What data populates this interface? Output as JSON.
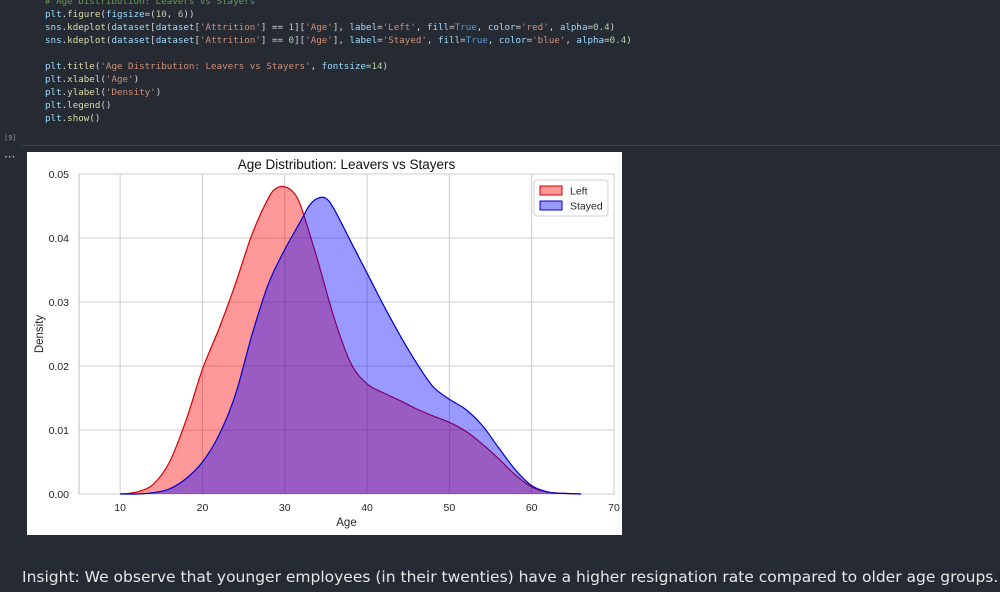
{
  "notebook": {
    "code_lines": [
      [
        [
          "tk-c",
          "# Age Distribution: Leavers vs Stayers"
        ]
      ],
      [
        [
          "tk-v",
          "plt"
        ],
        [
          "tk-p",
          "."
        ],
        [
          "tk-f",
          "figure"
        ],
        [
          "tk-p",
          "("
        ],
        [
          "tk-v",
          "figsize"
        ],
        [
          "tk-p",
          "=("
        ],
        [
          "tk-n",
          "10"
        ],
        [
          "tk-p",
          ", "
        ],
        [
          "tk-n",
          "6"
        ],
        [
          "tk-p",
          "))"
        ]
      ],
      [
        [
          "tk-v",
          "sns"
        ],
        [
          "tk-p",
          "."
        ],
        [
          "tk-f",
          "kdeplot"
        ],
        [
          "tk-p",
          "("
        ],
        [
          "tk-v",
          "dataset"
        ],
        [
          "tk-p",
          "["
        ],
        [
          "tk-v",
          "dataset"
        ],
        [
          "tk-p",
          "["
        ],
        [
          "tk-s",
          "'Attrition'"
        ],
        [
          "tk-p",
          "] == "
        ],
        [
          "tk-n",
          "1"
        ],
        [
          "tk-p",
          "]["
        ],
        [
          "tk-s",
          "'Age'"
        ],
        [
          "tk-p",
          "], "
        ],
        [
          "tk-v",
          "label"
        ],
        [
          "tk-p",
          "="
        ],
        [
          "tk-s",
          "'Left'"
        ],
        [
          "tk-p",
          ", "
        ],
        [
          "tk-v",
          "fill"
        ],
        [
          "tk-p",
          "="
        ],
        [
          "tk-k",
          "True"
        ],
        [
          "tk-p",
          ", "
        ],
        [
          "tk-v",
          "color"
        ],
        [
          "tk-p",
          "="
        ],
        [
          "tk-s",
          "'red'"
        ],
        [
          "tk-p",
          ", "
        ],
        [
          "tk-v",
          "alpha"
        ],
        [
          "tk-p",
          "="
        ],
        [
          "tk-n",
          "0.4"
        ],
        [
          "tk-p",
          ")"
        ]
      ],
      [
        [
          "tk-v",
          "sns"
        ],
        [
          "tk-p",
          "."
        ],
        [
          "tk-f",
          "kdeplot"
        ],
        [
          "tk-p",
          "("
        ],
        [
          "tk-v",
          "dataset"
        ],
        [
          "tk-p",
          "["
        ],
        [
          "tk-v",
          "dataset"
        ],
        [
          "tk-p",
          "["
        ],
        [
          "tk-s",
          "'Attrition'"
        ],
        [
          "tk-p",
          "] == "
        ],
        [
          "tk-n",
          "0"
        ],
        [
          "tk-p",
          "]["
        ],
        [
          "tk-s",
          "'Age'"
        ],
        [
          "tk-p",
          "], "
        ],
        [
          "tk-v",
          "label"
        ],
        [
          "tk-p",
          "="
        ],
        [
          "tk-s",
          "'Stayed'"
        ],
        [
          "tk-p",
          ", "
        ],
        [
          "tk-v",
          "fill"
        ],
        [
          "tk-p",
          "="
        ],
        [
          "tk-k",
          "True"
        ],
        [
          "tk-p",
          ", "
        ],
        [
          "tk-v",
          "color"
        ],
        [
          "tk-p",
          "="
        ],
        [
          "tk-s",
          "'blue'"
        ],
        [
          "tk-p",
          ", "
        ],
        [
          "tk-v",
          "alpha"
        ],
        [
          "tk-p",
          "="
        ],
        [
          "tk-n",
          "0.4"
        ],
        [
          "tk-p",
          ")"
        ]
      ],
      [],
      [
        [
          "tk-v",
          "plt"
        ],
        [
          "tk-p",
          "."
        ],
        [
          "tk-f",
          "title"
        ],
        [
          "tk-p",
          "("
        ],
        [
          "tk-s",
          "'Age Distribution: Leavers vs Stayers'"
        ],
        [
          "tk-p",
          ", "
        ],
        [
          "tk-v",
          "fontsize"
        ],
        [
          "tk-p",
          "="
        ],
        [
          "tk-n",
          "14"
        ],
        [
          "tk-p",
          ")"
        ]
      ],
      [
        [
          "tk-v",
          "plt"
        ],
        [
          "tk-p",
          "."
        ],
        [
          "tk-f",
          "xlabel"
        ],
        [
          "tk-p",
          "("
        ],
        [
          "tk-s",
          "'Age'"
        ],
        [
          "tk-p",
          ")"
        ]
      ],
      [
        [
          "tk-v",
          "plt"
        ],
        [
          "tk-p",
          "."
        ],
        [
          "tk-f",
          "ylabel"
        ],
        [
          "tk-p",
          "("
        ],
        [
          "tk-s",
          "'Density'"
        ],
        [
          "tk-p",
          ")"
        ]
      ],
      [
        [
          "tk-v",
          "plt"
        ],
        [
          "tk-p",
          "."
        ],
        [
          "tk-f",
          "legend"
        ],
        [
          "tk-p",
          "()"
        ]
      ],
      [
        [
          "tk-v",
          "plt"
        ],
        [
          "tk-p",
          "."
        ],
        [
          "tk-f",
          "show"
        ],
        [
          "tk-p",
          "()"
        ]
      ]
    ],
    "execution_count": "[9]",
    "more_icon": "···",
    "insight": "Insight: We observe that younger employees (in their twenties) have a higher resignation rate compared to older age groups."
  },
  "chart_data": {
    "type": "area",
    "title": "Age Distribution: Leavers vs Stayers",
    "xlabel": "Age",
    "ylabel": "Density",
    "xlim": [
      5,
      70
    ],
    "ylim": [
      0,
      0.05
    ],
    "xticks": [
      "10",
      "20",
      "30",
      "40",
      "50",
      "60",
      "70"
    ],
    "yticks": [
      "0.00",
      "0.01",
      "0.02",
      "0.03",
      "0.04",
      "0.05"
    ],
    "grid": true,
    "legend_position": "top-right",
    "series": [
      {
        "name": "Left",
        "fill": "#ff0000",
        "line": "#d40000",
        "x": [
          10,
          12,
          14,
          16,
          18,
          20,
          22,
          24,
          26,
          28,
          29,
          30,
          31,
          32,
          34,
          36,
          38,
          40,
          42,
          44,
          46,
          48,
          50,
          52,
          54,
          56,
          58,
          60,
          62,
          64,
          66
        ],
        "y": [
          0.0,
          0.0003,
          0.0015,
          0.005,
          0.0115,
          0.0195,
          0.0258,
          0.0328,
          0.0405,
          0.0462,
          0.0478,
          0.048,
          0.0472,
          0.0448,
          0.0365,
          0.0275,
          0.0205,
          0.0172,
          0.0158,
          0.0146,
          0.0133,
          0.0122,
          0.0112,
          0.0098,
          0.0078,
          0.0055,
          0.003,
          0.0011,
          0.0003,
          0.0001,
          0.0
        ]
      },
      {
        "name": "Stayed",
        "fill": "#0000ff",
        "line": "#0000cc",
        "x": [
          10,
          12,
          14,
          16,
          18,
          20,
          22,
          24,
          26,
          28,
          30,
          32,
          33,
          34,
          35,
          36,
          38,
          40,
          42,
          44,
          46,
          48,
          50,
          52,
          54,
          56,
          58,
          60,
          62,
          64,
          66
        ],
        "y": [
          0.0,
          0.0,
          0.0002,
          0.0008,
          0.0024,
          0.005,
          0.0092,
          0.0155,
          0.0248,
          0.0328,
          0.0382,
          0.0428,
          0.0451,
          0.0462,
          0.0462,
          0.0445,
          0.0395,
          0.0345,
          0.0295,
          0.0248,
          0.0205,
          0.0168,
          0.0148,
          0.0132,
          0.0107,
          0.0072,
          0.0038,
          0.0013,
          0.0003,
          0.0001,
          0.0
        ]
      }
    ],
    "colors": {
      "grid": "#cccccc",
      "axis": "#bdbdbd",
      "text": "#262626"
    }
  }
}
